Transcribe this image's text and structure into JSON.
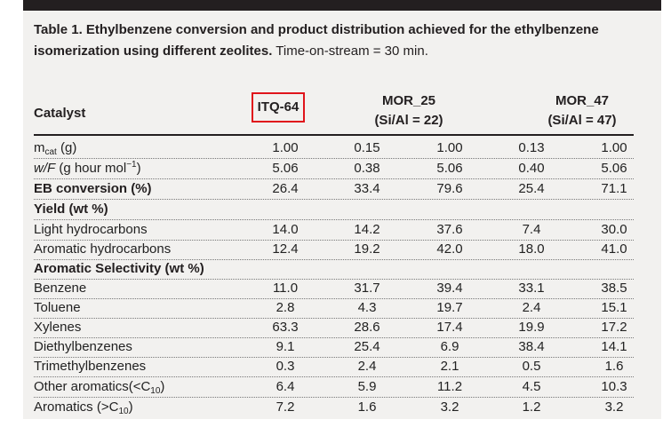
{
  "caption": {
    "bold": "Table 1. Ethylbenzene conversion and product distribution achieved for the ethylbenzene isomerization using different zeolites.",
    "normal": "Time-on-stream = 30 min."
  },
  "header": {
    "catalyst": "Catalyst",
    "itq": "ITQ-64",
    "mor25_name": "MOR_25",
    "mor25_ratio": "(Si/Al = 22)",
    "mor47_name": "MOR_47",
    "mor47_ratio": "(Si/Al = 47)"
  },
  "rows": [
    {
      "label": "m",
      "label_sub": "cat",
      "label_tail": " (g)",
      "values": [
        "1.00",
        "0.15",
        "1.00",
        "0.13",
        "1.00"
      ]
    },
    {
      "label_italic": "w/F",
      "label_tail": " (g hour mol",
      "label_sup": "−1",
      "label_end": ")",
      "values": [
        "5.06",
        "0.38",
        "5.06",
        "0.40",
        "5.06"
      ]
    },
    {
      "label": "EB conversion (%)",
      "values": [
        "26.4",
        "33.4",
        "79.6",
        "25.4",
        "71.1"
      ]
    },
    {
      "label": "Yield (wt %)"
    },
    {
      "label": "Light hydrocarbons",
      "values": [
        "14.0",
        "14.2",
        "37.6",
        "7.4",
        "30.0"
      ]
    },
    {
      "label": "Aromatic hydrocarbons",
      "values": [
        "12.4",
        "19.2",
        "42.0",
        "18.0",
        "41.0"
      ]
    },
    {
      "label": "Aromatic Selectivity (wt %)"
    },
    {
      "label": "Benzene",
      "values": [
        "11.0",
        "31.7",
        "39.4",
        "33.1",
        "38.5"
      ]
    },
    {
      "label": "Toluene",
      "values": [
        "2.8",
        "4.3",
        "19.7",
        "2.4",
        "15.1"
      ]
    },
    {
      "label": "Xylenes",
      "values": [
        "63.3",
        "28.6",
        "17.4",
        "19.9",
        "17.2"
      ]
    },
    {
      "label": "Diethylbenzenes",
      "values": [
        "9.1",
        "25.4",
        "6.9",
        "38.4",
        "14.1"
      ]
    },
    {
      "label": "Trimethylbenzenes",
      "values": [
        "0.3",
        "2.4",
        "2.1",
        "0.5",
        "1.6"
      ]
    },
    {
      "label": "Other aromatics(<C",
      "label_sub": "10",
      "label_tail": ")",
      "values": [
        "6.4",
        "5.9",
        "11.2",
        "4.5",
        "10.3"
      ]
    },
    {
      "label": "Aromatics (>C",
      "label_sub": "10",
      "label_tail": ")",
      "values": [
        "7.2",
        "1.6",
        "3.2",
        "1.2",
        "3.2"
      ]
    }
  ]
}
